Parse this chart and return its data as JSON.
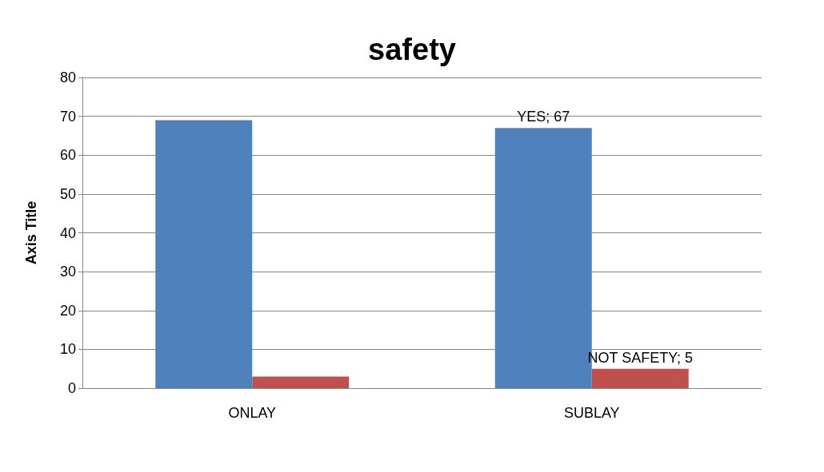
{
  "chart_data": {
    "type": "bar",
    "title": "safety",
    "ylabel": "Axis Title",
    "categories": [
      "ONLAY",
      "SUBLAY"
    ],
    "series": [
      {
        "color": "#4f81bd",
        "values": [
          69,
          67
        ],
        "value_labels": [
          null,
          "YES; 67"
        ]
      },
      {
        "color": "#c0504d",
        "values": [
          3,
          5
        ],
        "value_labels": [
          null,
          "NOT SAFETY; 5"
        ]
      }
    ],
    "ylim": [
      0,
      80
    ],
    "yticks": [
      0,
      10,
      20,
      30,
      40,
      50,
      60,
      70,
      80
    ],
    "grid": "y"
  }
}
